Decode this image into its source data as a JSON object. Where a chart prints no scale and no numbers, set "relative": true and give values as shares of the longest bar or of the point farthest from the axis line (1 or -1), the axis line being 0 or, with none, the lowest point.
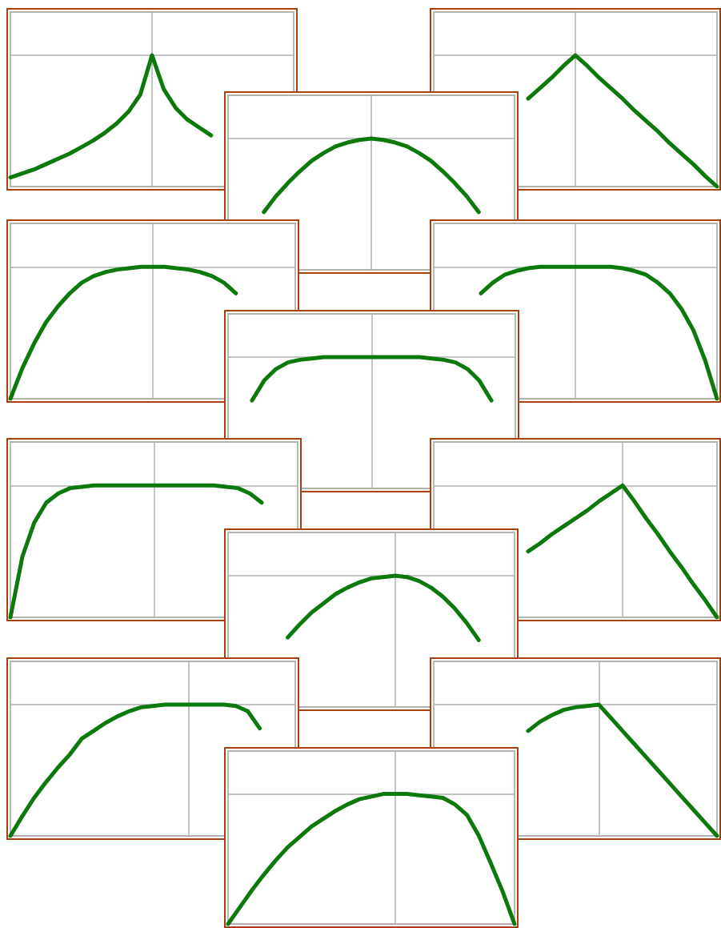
{
  "chart_data": [
    {
      "type": "line",
      "relative": true,
      "grid": true,
      "tick_labels": false,
      "marker": "none",
      "color": "#0b7a0b",
      "categories": [
        null,
        null,
        null,
        null,
        null,
        null,
        null,
        null,
        null,
        null,
        null,
        null,
        null,
        null,
        null,
        null,
        null,
        null,
        null,
        null,
        null,
        null,
        null,
        null,
        null
      ],
      "values": [
        0.07,
        0.1,
        0.13,
        0.17,
        0.21,
        0.25,
        0.3,
        0.35,
        0.41,
        0.48,
        0.57,
        0.7,
        1,
        0.74,
        0.6,
        0.51,
        0.45,
        0.39,
        null,
        null,
        null,
        null,
        null,
        null,
        null
      ]
    },
    {
      "type": "line",
      "relative": true,
      "grid": true,
      "tick_labels": false,
      "marker": "none",
      "color": "#0b7a0b",
      "categories": [
        null,
        null,
        null,
        null,
        null,
        null,
        null,
        null,
        null,
        null,
        null,
        null,
        null,
        null,
        null,
        null,
        null,
        null,
        null,
        null,
        null,
        null,
        null,
        null,
        null
      ],
      "values": [
        null,
        null,
        null,
        null,
        null,
        null,
        null,
        null,
        0.67,
        0.75,
        0.83,
        0.92,
        1,
        0.92,
        0.83,
        0.75,
        0.67,
        0.58,
        0.5,
        0.42,
        0.33,
        0.25,
        0.17,
        0.08,
        0
      ]
    },
    {
      "type": "line",
      "relative": true,
      "grid": true,
      "tick_labels": false,
      "marker": "none",
      "color": "#0b7a0b",
      "categories": [
        null,
        null,
        null,
        null,
        null,
        null,
        null,
        null,
        null,
        null,
        null,
        null,
        null,
        null,
        null,
        null,
        null,
        null,
        null,
        null,
        null,
        null,
        null,
        null,
        null
      ],
      "values": [
        null,
        null,
        null,
        0.44,
        0.56,
        0.66,
        0.75,
        0.83,
        0.89,
        0.94,
        0.97,
        0.99,
        1,
        0.99,
        0.97,
        0.94,
        0.89,
        0.83,
        0.75,
        0.66,
        0.56,
        0.44,
        null,
        null,
        null
      ]
    },
    {
      "type": "line",
      "relative": true,
      "grid": true,
      "tick_labels": false,
      "marker": "none",
      "color": "#0b7a0b",
      "categories": [
        null,
        null,
        null,
        null,
        null,
        null,
        null,
        null,
        null,
        null,
        null,
        null,
        null,
        null,
        null,
        null,
        null,
        null,
        null,
        null,
        null,
        null,
        null,
        null,
        null
      ],
      "values": [
        0,
        0.23,
        0.42,
        0.58,
        0.7,
        0.8,
        0.88,
        0.93,
        0.96,
        0.98,
        0.99,
        1,
        1,
        1,
        0.99,
        0.98,
        0.96,
        0.93,
        0.88,
        0.8,
        null,
        null,
        null,
        null,
        null
      ]
    },
    {
      "type": "line",
      "relative": true,
      "grid": true,
      "tick_labels": false,
      "marker": "none",
      "color": "#0b7a0b",
      "categories": [
        null,
        null,
        null,
        null,
        null,
        null,
        null,
        null,
        null,
        null,
        null,
        null,
        null,
        null,
        null,
        null,
        null,
        null,
        null,
        null,
        null,
        null,
        null,
        null,
        null
      ],
      "values": [
        null,
        null,
        null,
        null,
        0.8,
        0.88,
        0.94,
        0.97,
        0.99,
        1,
        1,
        1,
        1,
        1,
        1,
        1,
        0.99,
        0.97,
        0.94,
        0.88,
        0.8,
        0.68,
        0.52,
        0.29,
        0
      ]
    },
    {
      "type": "line",
      "relative": true,
      "grid": true,
      "tick_labels": false,
      "marker": "none",
      "color": "#0b7a0b",
      "categories": [
        null,
        null,
        null,
        null,
        null,
        null,
        null,
        null,
        null,
        null,
        null,
        null,
        null,
        null,
        null,
        null,
        null,
        null,
        null,
        null,
        null,
        null,
        null,
        null,
        null
      ],
      "values": [
        null,
        null,
        0.67,
        0.82,
        0.91,
        0.96,
        0.98,
        0.99,
        1,
        1,
        1,
        1,
        1,
        1,
        1,
        1,
        1,
        0.99,
        0.98,
        0.96,
        0.91,
        0.82,
        0.67,
        null,
        null
      ]
    },
    {
      "type": "line",
      "relative": true,
      "grid": true,
      "tick_labels": false,
      "marker": "none",
      "color": "#0b7a0b",
      "categories": [
        null,
        null,
        null,
        null,
        null,
        null,
        null,
        null,
        null,
        null,
        null,
        null,
        null,
        null,
        null,
        null,
        null,
        null,
        null,
        null,
        null,
        null,
        null,
        null,
        null
      ],
      "values": [
        0,
        0.46,
        0.72,
        0.87,
        0.94,
        0.98,
        0.99,
        1,
        1,
        1,
        1,
        1,
        1,
        1,
        1,
        1,
        1,
        1,
        0.99,
        0.98,
        0.94,
        0.87,
        null,
        null,
        null
      ]
    },
    {
      "type": "line",
      "relative": true,
      "grid": true,
      "tick_labels": false,
      "marker": "none",
      "color": "#0b7a0b",
      "categories": [
        null,
        null,
        null,
        null,
        null,
        null,
        null,
        null,
        null,
        null,
        null,
        null,
        null,
        null,
        null,
        null,
        null,
        null,
        null,
        null,
        null,
        null,
        null,
        null,
        null
      ],
      "values": [
        null,
        null,
        null,
        null,
        null,
        null,
        null,
        null,
        0.5,
        0.56,
        0.63,
        0.69,
        0.75,
        0.81,
        0.88,
        0.94,
        1,
        0.88,
        0.75,
        0.63,
        0.5,
        0.38,
        0.25,
        0.13,
        0
      ]
    },
    {
      "type": "line",
      "relative": true,
      "grid": true,
      "tick_labels": false,
      "marker": "none",
      "color": "#0b7a0b",
      "categories": [
        null,
        null,
        null,
        null,
        null,
        null,
        null,
        null,
        null,
        null,
        null,
        null,
        null,
        null,
        null,
        null,
        null,
        null,
        null,
        null,
        null,
        null,
        null,
        null,
        null
      ],
      "values": [
        null,
        null,
        null,
        null,
        null,
        0.53,
        0.63,
        0.72,
        0.79,
        0.86,
        0.91,
        0.95,
        0.98,
        0.99,
        1,
        0.99,
        0.96,
        0.91,
        0.84,
        0.75,
        0.64,
        0.51,
        null,
        null,
        null
      ]
    },
    {
      "type": "line",
      "relative": true,
      "grid": true,
      "tick_labels": false,
      "marker": "none",
      "color": "#0b7a0b",
      "categories": [
        null,
        null,
        null,
        null,
        null,
        null,
        null,
        null,
        null,
        null,
        null,
        null,
        null,
        null,
        null,
        null,
        null,
        null,
        null,
        null,
        null,
        null,
        null,
        null,
        null
      ],
      "values": [
        0,
        0.15,
        0.29,
        0.41,
        0.52,
        0.62,
        0.74,
        0.8,
        0.86,
        0.91,
        0.95,
        0.98,
        0.99,
        1,
        1,
        1,
        1,
        1,
        1,
        0.99,
        0.95,
        0.82,
        null,
        null,
        null
      ]
    },
    {
      "type": "line",
      "relative": true,
      "grid": true,
      "tick_labels": false,
      "marker": "none",
      "color": "#0b7a0b",
      "categories": [
        null,
        null,
        null,
        null,
        null,
        null,
        null,
        null,
        null,
        null,
        null,
        null,
        null,
        null,
        null,
        null,
        null,
        null,
        null,
        null,
        null,
        null,
        null,
        null,
        null
      ],
      "values": [
        null,
        null,
        null,
        null,
        null,
        null,
        null,
        null,
        0.8,
        0.87,
        0.92,
        0.96,
        0.98,
        0.99,
        1,
        0.9,
        0.8,
        0.7,
        0.6,
        0.5,
        0.4,
        0.3,
        0.2,
        0.1,
        0
      ]
    },
    {
      "type": "line",
      "relative": true,
      "grid": true,
      "tick_labels": false,
      "marker": "none",
      "color": "#0b7a0b",
      "categories": [
        null,
        null,
        null,
        null,
        null,
        null,
        null,
        null,
        null,
        null,
        null,
        null,
        null,
        null,
        null,
        null,
        null,
        null,
        null,
        null,
        null,
        null,
        null,
        null,
        null
      ],
      "values": [
        0,
        0.13,
        0.26,
        0.38,
        0.49,
        0.59,
        0.67,
        0.75,
        0.81,
        0.87,
        0.92,
        0.96,
        0.98,
        1,
        1,
        1,
        0.99,
        0.98,
        0.97,
        0.92,
        0.84,
        0.68,
        0.47,
        0.25,
        0
      ]
    }
  ]
}
